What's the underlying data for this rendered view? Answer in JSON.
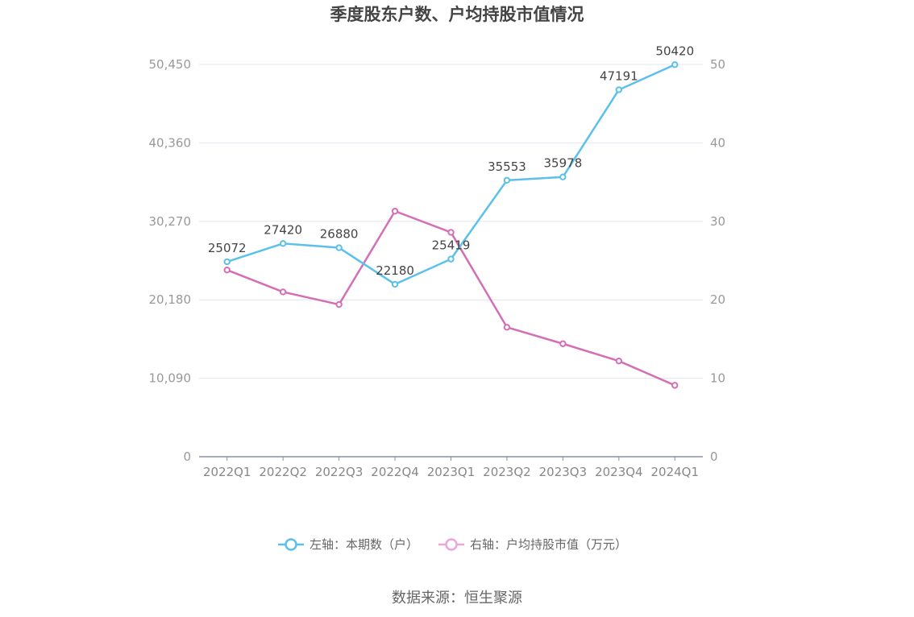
{
  "chart_data": {
    "type": "line",
    "title": "季度股东户数、户均持股市值情况",
    "categories": [
      "2022Q1",
      "2022Q2",
      "2022Q3",
      "2022Q4",
      "2023Q1",
      "2023Q2",
      "2023Q3",
      "2023Q4",
      "2024Q1"
    ],
    "left_axis": {
      "ticks": [
        "0",
        "10,090",
        "20,180",
        "30,270",
        "40,360",
        "50,450"
      ],
      "ylim": [
        0,
        50450
      ]
    },
    "right_axis": {
      "ticks": [
        "0",
        "10",
        "20",
        "30",
        "40",
        "50"
      ],
      "ylim": [
        0,
        50
      ]
    },
    "series": [
      {
        "name": "左轴：本期数（户）",
        "axis": "left",
        "color": "#5bc0eb",
        "values": [
          25072,
          27420,
          26880,
          22180,
          25419,
          35553,
          35978,
          47191,
          50420
        ],
        "labels": [
          "25072",
          "27420",
          "26880",
          "22180",
          "25419",
          "35553",
          "35978",
          "47191",
          "50420"
        ]
      },
      {
        "name": "右轴：户均持股市值（万元）",
        "axis": "right",
        "color": "#d46fb5",
        "values": [
          23.8,
          21.0,
          19.4,
          31.3,
          28.6,
          16.5,
          14.4,
          12.2,
          9.1
        ]
      }
    ],
    "grid": true,
    "legend_position": "bottom"
  },
  "source": "数据来源：恒生聚源"
}
